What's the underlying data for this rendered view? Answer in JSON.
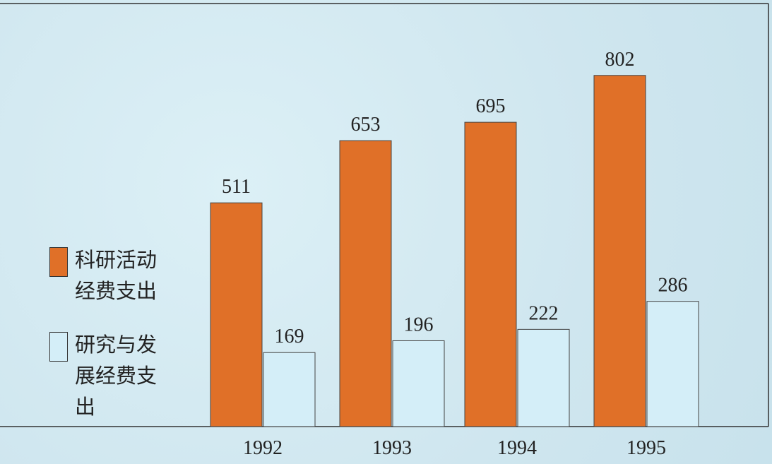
{
  "chart_data": {
    "type": "bar",
    "categories": [
      "1992",
      "1993",
      "1994",
      "1995"
    ],
    "series": [
      {
        "name": "科研活动经费支出",
        "color": "#e07028",
        "values": [
          511,
          653,
          695,
          802
        ]
      },
      {
        "name": "研究与发展经费支出",
        "color": "#d4eef8",
        "values": [
          169,
          196,
          222,
          286
        ]
      }
    ]
  }
}
